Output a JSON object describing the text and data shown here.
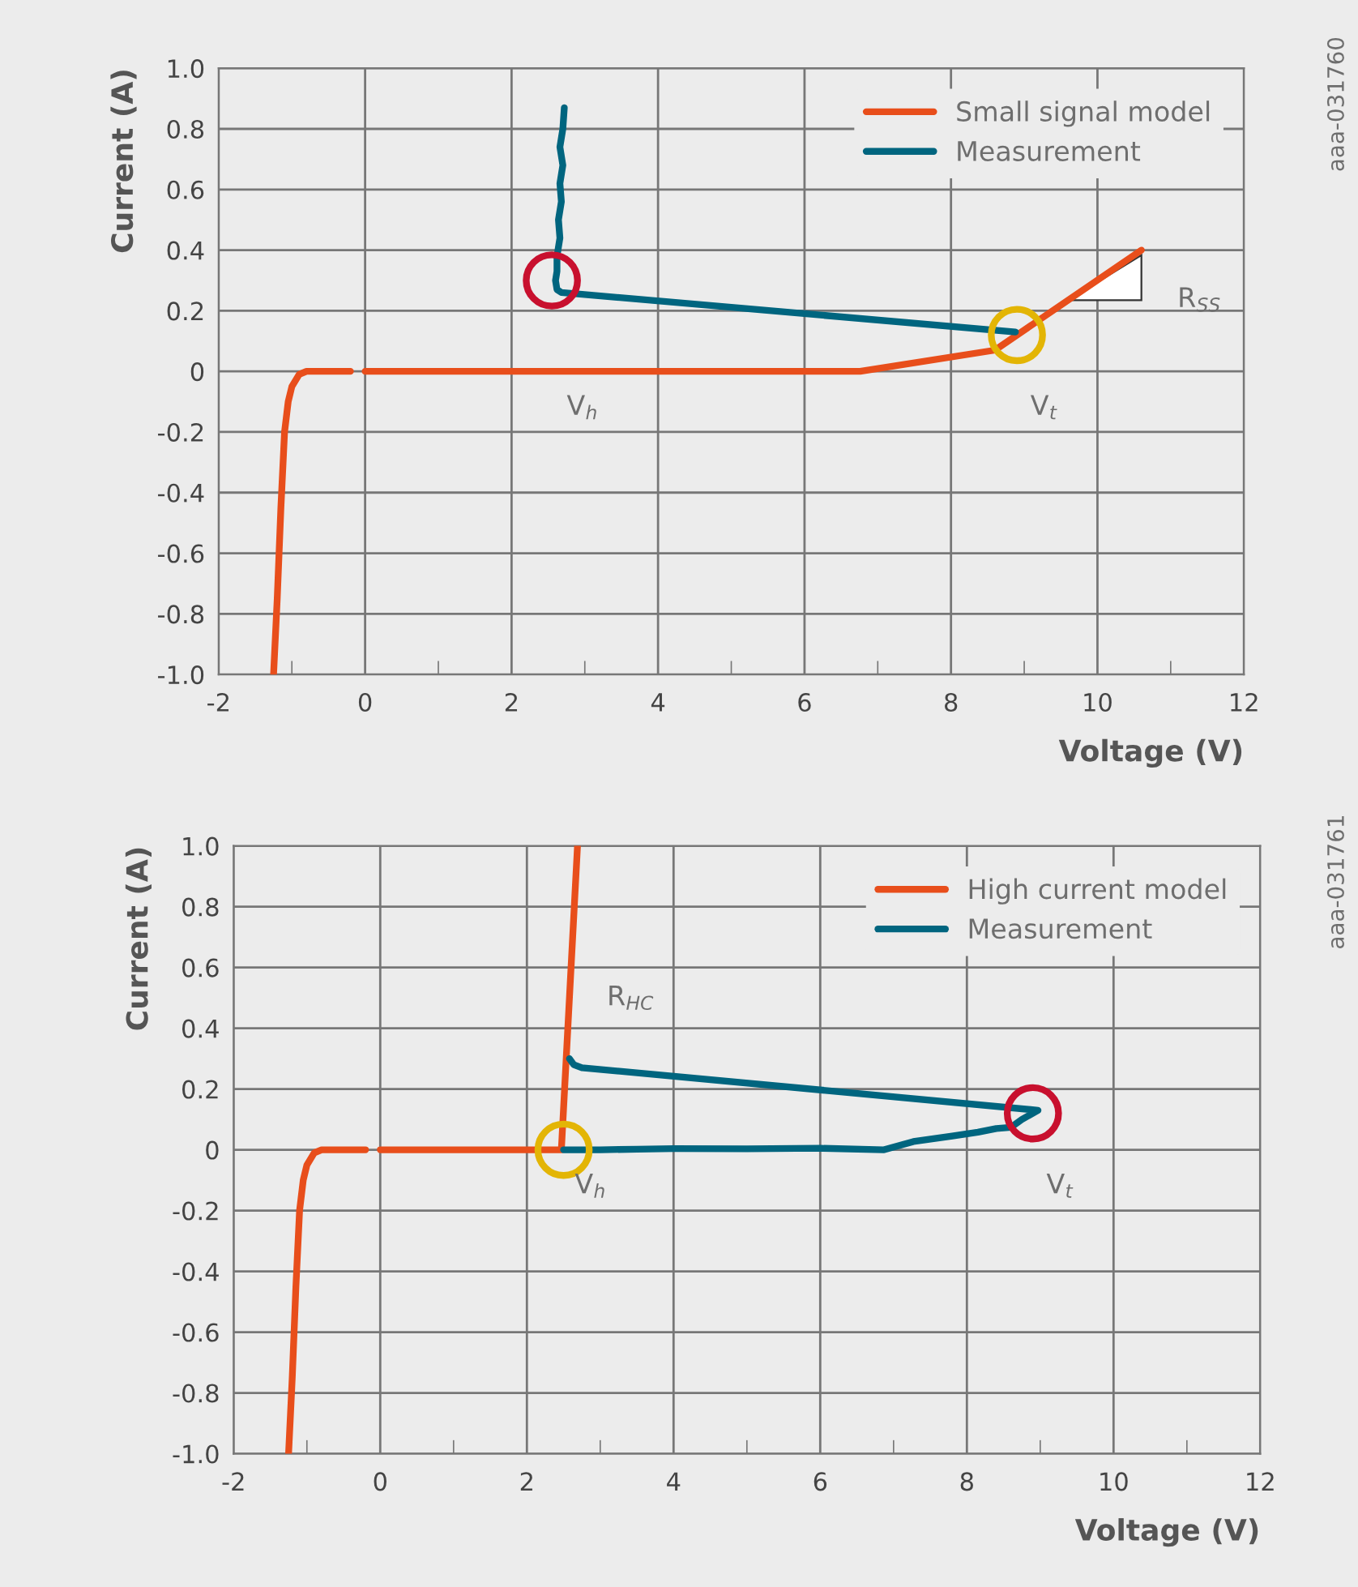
{
  "chart_data": [
    {
      "type": "line",
      "xlabel": "Voltage (V)",
      "ylabel": "Current (A)",
      "xlim": [
        -2,
        12
      ],
      "ylim": [
        -1,
        1
      ],
      "grid": true,
      "legend": "top right",
      "line_style": "solid",
      "marker": "none",
      "xticks": [
        -2,
        {
          "value": -1,
          "label": null
        },
        0,
        {
          "value": 1,
          "label": null
        },
        2,
        {
          "value": 3,
          "label": null
        },
        4,
        {
          "value": 5,
          "label": null
        },
        6,
        {
          "value": 7,
          "label": null
        },
        8,
        {
          "value": 9,
          "label": null
        },
        10,
        {
          "value": 11,
          "label": null
        },
        12
      ],
      "yticks": [
        {
          "value": -1,
          "label": "-1.0"
        },
        {
          "value": -0.8,
          "label": "-0.8"
        },
        {
          "value": -0.6,
          "label": "-0.6"
        },
        {
          "value": -0.4,
          "label": "-0.4"
        },
        {
          "value": -0.2,
          "label": "-0.2"
        },
        0,
        {
          "value": 0.2,
          "label": "0.2"
        },
        {
          "value": 0.4,
          "label": "0.4"
        },
        {
          "value": 0.6,
          "label": "0.6"
        },
        {
          "value": 0.8,
          "label": "0.8"
        },
        {
          "value": 1,
          "label": "1.0"
        }
      ],
      "series": [
        {
          "name": "Small signal model",
          "color": "#e84e1b",
          "x": [
            -1.25,
            -1.2,
            -1.15,
            -1.1,
            -1.05,
            -1.0,
            -0.9,
            -0.8,
            -0.6,
            -0.2,
            -0.1,
            0,
            6.76,
            8.6,
            10.6
          ],
          "values": [
            -1.0,
            -0.75,
            -0.45,
            -0.2,
            -0.1,
            -0.05,
            -0.01,
            0,
            0,
            0,
            null,
            0,
            0,
            0.07,
            0.4
          ]
        },
        {
          "name": "Measurement",
          "color": "#00657f",
          "x": [
            2.72,
            2.7,
            2.66,
            2.7,
            2.66,
            2.68,
            2.64,
            2.66,
            2.62,
            2.62,
            2.6,
            2.62,
            2.68,
            8.88
          ],
          "values": [
            0.87,
            0.8,
            0.74,
            0.68,
            0.62,
            0.56,
            0.5,
            0.44,
            0.38,
            0.33,
            0.3,
            0.27,
            0.26,
            0.13
          ]
        },
        {
          "type": "scatter",
          "marker": "circle",
          "color": "#c8102e",
          "x": [
            2.55
          ],
          "values": [
            0.3
          ]
        },
        {
          "type": "scatter",
          "marker": "circle",
          "color": "#e3b505",
          "x": [
            8.9
          ],
          "values": [
            0.12
          ]
        }
      ],
      "annotations": [
        {
          "text": "V$_{h}$",
          "x": 2.6,
          "y": 0
        },
        {
          "text": "V$_{t}$",
          "x": 8.9,
          "y": 0.12
        },
        {
          "text": "R$_{SS}$",
          "x": 10.6,
          "y": 0.4
        },
        "aaa-031760"
      ]
    },
    {
      "type": "line",
      "xlabel": "Voltage (V)",
      "ylabel": "Current (A)",
      "xlim": [
        -2,
        12
      ],
      "ylim": [
        -1,
        1
      ],
      "grid": true,
      "legend": "top right",
      "line_style": "solid",
      "marker": "none",
      "xticks": [
        -2,
        {
          "value": -1,
          "label": null
        },
        0,
        {
          "value": 1,
          "label": null
        },
        2,
        {
          "value": 3,
          "label": null
        },
        4,
        {
          "value": 5,
          "label": null
        },
        6,
        {
          "value": 7,
          "label": null
        },
        8,
        {
          "value": 9,
          "label": null
        },
        10,
        {
          "value": 11,
          "label": null
        },
        12
      ],
      "yticks": [
        {
          "value": -1,
          "label": "-1.0"
        },
        {
          "value": -0.8,
          "label": "-0.8"
        },
        {
          "value": -0.6,
          "label": "-0.6"
        },
        {
          "value": -0.4,
          "label": "-0.4"
        },
        {
          "value": -0.2,
          "label": "-0.2"
        },
        0,
        {
          "value": 0.2,
          "label": "0.2"
        },
        {
          "value": 0.4,
          "label": "0.4"
        },
        {
          "value": 0.6,
          "label": "0.6"
        },
        {
          "value": 0.8,
          "label": "0.8"
        },
        {
          "value": 1,
          "label": "1.0"
        }
      ],
      "series": [
        {
          "name": "High current model",
          "color": "#e84e1b",
          "x": [
            -1.25,
            -1.2,
            -1.15,
            -1.1,
            -1.05,
            -1.0,
            -0.9,
            -0.8,
            -0.6,
            -0.2,
            -0.1,
            0,
            2.47,
            2.69
          ],
          "values": [
            -1.0,
            -0.75,
            -0.45,
            -0.2,
            -0.1,
            -0.05,
            -0.01,
            0,
            0,
            0,
            null,
            0,
            0,
            1.0
          ]
        },
        {
          "name": "Measurement",
          "color": "#00657f",
          "x": [
            2.58,
            2.64,
            2.75,
            8.97,
            8.75,
            8.6,
            8.4,
            8.15,
            7.8,
            7.27,
            6.87,
            6.0,
            5.0,
            4.0,
            3.5,
            3.0,
            2.5
          ],
          "values": [
            0.3,
            0.28,
            0.27,
            0.13,
            0.1,
            0.074,
            0.07,
            0.058,
            0.045,
            0.027,
            0.0,
            0.005,
            0.003,
            0.004,
            0.002,
            0.0,
            0.0
          ]
        },
        {
          "type": "scatter",
          "marker": "circle",
          "color": "#e3b505",
          "x": [
            2.5
          ],
          "values": [
            0.0
          ]
        },
        {
          "type": "scatter",
          "marker": "circle",
          "color": "#c8102e",
          "x": [
            8.9
          ],
          "values": [
            0.12
          ]
        }
      ],
      "annotations": [
        {
          "text": "R$_{HC}$",
          "x": 2.6,
          "y": 0.5
        },
        {
          "text": "V$_{h}$",
          "x": 2.5,
          "y": 0
        },
        {
          "text": "V$_{t}$",
          "x": 8.9,
          "y": 0.12
        },
        "aaa-031761"
      ]
    }
  ]
}
